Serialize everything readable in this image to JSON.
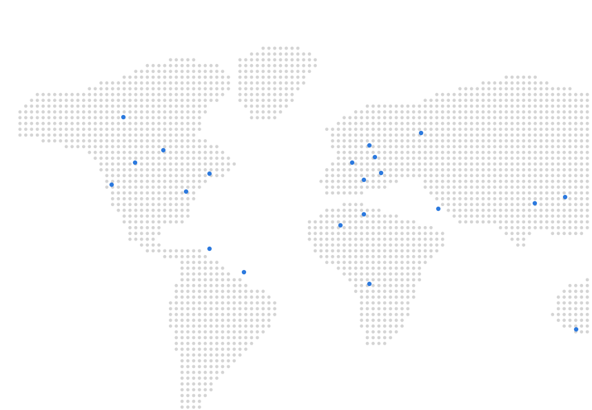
{
  "map": {
    "land_color": "#d4d4d4",
    "marker_color": "#2b79de",
    "background": "#ffffff"
  },
  "markers": [
    {
      "name": "marker-alaska"
    },
    {
      "name": "marker-central-canada"
    },
    {
      "name": "marker-western-canada"
    },
    {
      "name": "marker-eastern-canada"
    },
    {
      "name": "marker-california"
    },
    {
      "name": "marker-southeast-us"
    },
    {
      "name": "marker-central-america"
    },
    {
      "name": "marker-brazil"
    },
    {
      "name": "marker-scandinavia"
    },
    {
      "name": "marker-uk"
    },
    {
      "name": "marker-central-europe"
    },
    {
      "name": "marker-russia"
    },
    {
      "name": "marker-iberia"
    },
    {
      "name": "marker-italy"
    },
    {
      "name": "marker-north-africa"
    },
    {
      "name": "marker-west-africa"
    },
    {
      "name": "marker-middle-east"
    },
    {
      "name": "marker-central-africa"
    },
    {
      "name": "marker-east-asia"
    },
    {
      "name": "marker-japan"
    },
    {
      "name": "marker-australia"
    }
  ]
}
